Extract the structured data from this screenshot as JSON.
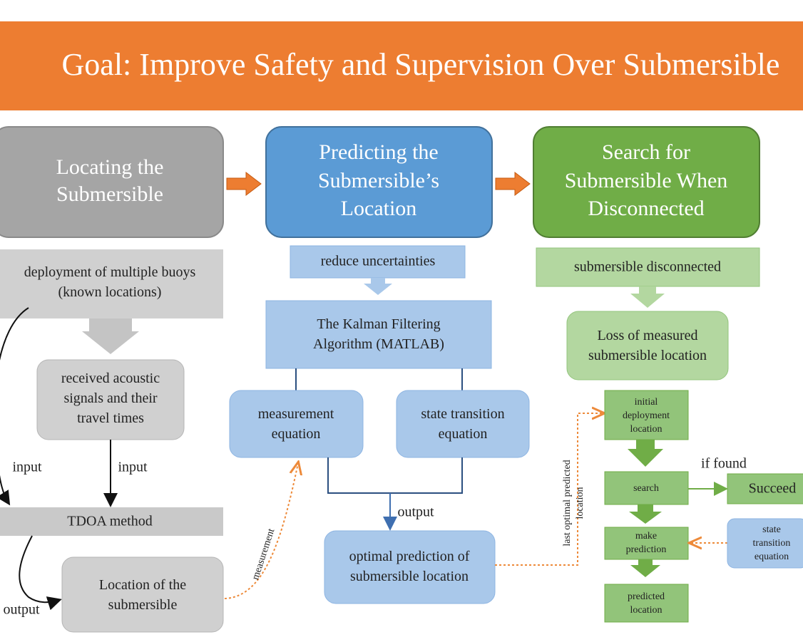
{
  "header": {
    "title": "Goal: Improve Safety and Supervision Over Submersible"
  },
  "stages": [
    {
      "lines": [
        "Locating the",
        "Submersible"
      ]
    },
    {
      "lines": [
        "Predicting the",
        "Submersible’s",
        "Location"
      ]
    },
    {
      "lines": [
        "Search for",
        "Submersible When",
        "Disconnected"
      ]
    }
  ],
  "locate": {
    "buoys": [
      "deployment of multiple buoys",
      "(known locations)"
    ],
    "signals": [
      "received acoustic",
      "signals and their",
      "travel times"
    ],
    "input_left": "input",
    "input_right": "input",
    "tdoa": "TDOA method",
    "output": "output",
    "location": [
      "Location of the",
      "submersible"
    ],
    "measurement": "measurement"
  },
  "predict": {
    "reduce": "reduce uncertainties",
    "kalman": [
      "The Kalman Filtering",
      "Algorithm (MATLAB)"
    ],
    "measurement_eq": [
      "measurement",
      "equation"
    ],
    "state_eq": [
      "state transition",
      "equation"
    ],
    "output": "output",
    "optimal": [
      "optimal prediction of",
      "submersible location"
    ],
    "last": [
      "last optimal predicted",
      "location"
    ]
  },
  "search": {
    "disconnected": "submersible disconnected",
    "loss": [
      "Loss of measured",
      "submersible location"
    ],
    "initial": [
      "initial",
      "deployment",
      "location"
    ],
    "search": "search",
    "if_found": "if found",
    "succeed": "Succeed",
    "make": [
      "make",
      "prediction"
    ],
    "state": [
      "state",
      "transition",
      "equation"
    ],
    "predicted": [
      "predicted",
      "location"
    ]
  }
}
